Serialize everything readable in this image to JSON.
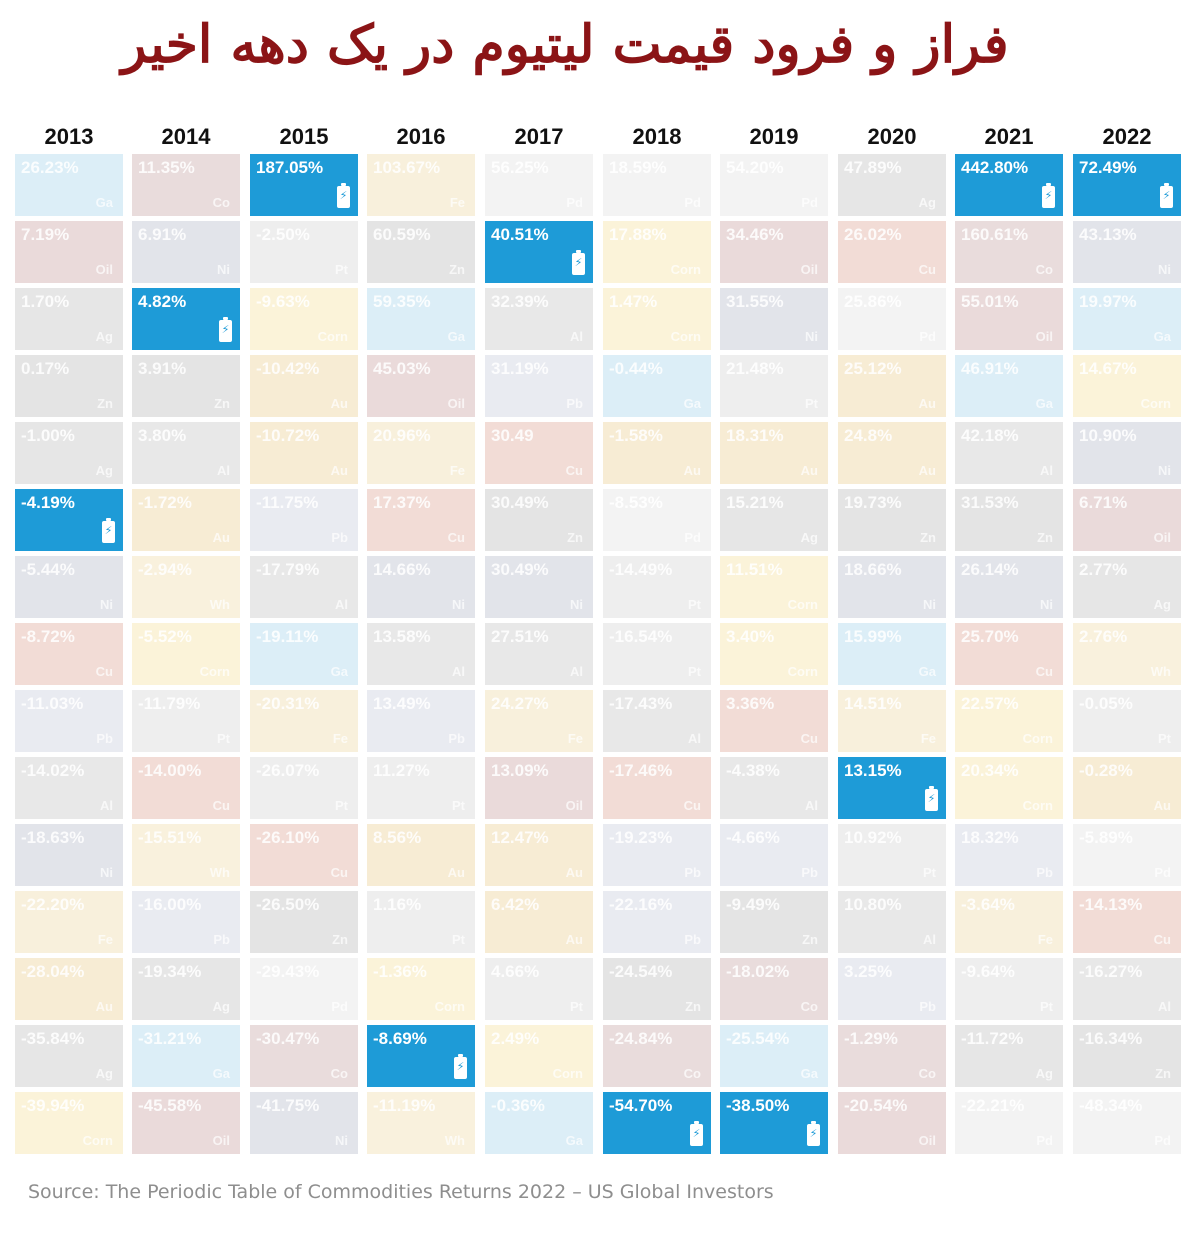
{
  "title": "فراز و فرود قیمت لیتیوم در یک دهه اخیر",
  "source": "Source: The Periodic Table of Commodities Returns 2022 – US Global Investors",
  "colors": {
    "highlight": "#1e9bd7",
    "title": "#8b1416",
    "commodity": {
      "Li": "#1e9bd7",
      "Ni": "#e2e4ea",
      "Ag": "#e6e6e6",
      "Au": "#f7ecd4",
      "Zn": "#e4e4e4",
      "Al": "#e8e8e8",
      "Pb": "#e9ebf1",
      "Cu": "#f2dcd6",
      "Pt": "#eeeeee",
      "Pd": "#f3f3f3",
      "Ga": "#dceef7",
      "Fe": "#f8f0dc",
      "Co": "#e9dcdc",
      "Oil": "#eadada",
      "Corn": "#fbf3d9",
      "Wh": "#f9f1dd"
    }
  },
  "chart_data": {
    "type": "table",
    "title": "فراز و فرود قیمت لیتیوم در یک دهه اخیر",
    "highlight_series": "Li",
    "columns": [
      {
        "year": "2013",
        "cells": [
          {
            "value": "26.23%",
            "sym": "Ga"
          },
          {
            "value": "7.19%",
            "sym": "Oil"
          },
          {
            "value": "1.70%",
            "sym": "Ag"
          },
          {
            "value": "0.17%",
            "sym": "Zn"
          },
          {
            "value": "-1.00%",
            "sym": "Ag"
          },
          {
            "value": "-4.19%",
            "sym": "Li"
          },
          {
            "value": "-5.44%",
            "sym": "Ni"
          },
          {
            "value": "-8.72%",
            "sym": "Cu"
          },
          {
            "value": "-11.03%",
            "sym": "Pb"
          },
          {
            "value": "-14.02%",
            "sym": "Al"
          },
          {
            "value": "-18.63%",
            "sym": "Ni"
          },
          {
            "value": "-22.20%",
            "sym": "Fe"
          },
          {
            "value": "-28.04%",
            "sym": "Au"
          },
          {
            "value": "-35.84%",
            "sym": "Ag"
          },
          {
            "value": "-39.94%",
            "sym": "Corn"
          }
        ]
      },
      {
        "year": "2014",
        "cells": [
          {
            "value": "11.35%",
            "sym": "Co"
          },
          {
            "value": "6.91%",
            "sym": "Ni"
          },
          {
            "value": "4.82%",
            "sym": "Li"
          },
          {
            "value": "3.91%",
            "sym": "Zn"
          },
          {
            "value": "3.80%",
            "sym": "Al"
          },
          {
            "value": "-1.72%",
            "sym": "Au"
          },
          {
            "value": "-2.94%",
            "sym": "Wh"
          },
          {
            "value": "-5.52%",
            "sym": "Corn"
          },
          {
            "value": "-11.79%",
            "sym": "Pt"
          },
          {
            "value": "-14.00%",
            "sym": "Cu"
          },
          {
            "value": "-15.51%",
            "sym": "Wh"
          },
          {
            "value": "-16.00%",
            "sym": "Pb"
          },
          {
            "value": "-19.34%",
            "sym": "Ag"
          },
          {
            "value": "-31.21%",
            "sym": "Ga"
          },
          {
            "value": "-45.58%",
            "sym": "Oil"
          }
        ]
      },
      {
        "year": "2015",
        "cells": [
          {
            "value": "187.05%",
            "sym": "Li"
          },
          {
            "value": "-2.50%",
            "sym": "Pt"
          },
          {
            "value": "-9.63%",
            "sym": "Corn"
          },
          {
            "value": "-10.42%",
            "sym": "Au"
          },
          {
            "value": "-10.72%",
            "sym": "Au"
          },
          {
            "value": "-11.75%",
            "sym": "Pb"
          },
          {
            "value": "-17.79%",
            "sym": "Al"
          },
          {
            "value": "-19.11%",
            "sym": "Ga"
          },
          {
            "value": "-20.31%",
            "sym": "Fe"
          },
          {
            "value": "-26.07%",
            "sym": "Pt"
          },
          {
            "value": "-26.10%",
            "sym": "Cu"
          },
          {
            "value": "-26.50%",
            "sym": "Zn"
          },
          {
            "value": "-29.43%",
            "sym": "Pd"
          },
          {
            "value": "-30.47%",
            "sym": "Co"
          },
          {
            "value": "-41.75%",
            "sym": "Ni"
          }
        ]
      },
      {
        "year": "2016",
        "cells": [
          {
            "value": "103.67%",
            "sym": "Fe"
          },
          {
            "value": "60.59%",
            "sym": "Zn"
          },
          {
            "value": "59.35%",
            "sym": "Ga"
          },
          {
            "value": "45.03%",
            "sym": "Oil"
          },
          {
            "value": "20.96%",
            "sym": "Fe"
          },
          {
            "value": "17.37%",
            "sym": "Cu"
          },
          {
            "value": "14.66%",
            "sym": "Ni"
          },
          {
            "value": "13.58%",
            "sym": "Al"
          },
          {
            "value": "13.49%",
            "sym": "Pb"
          },
          {
            "value": "11.27%",
            "sym": "Pt"
          },
          {
            "value": "8.56%",
            "sym": "Au"
          },
          {
            "value": "1.16%",
            "sym": "Pt"
          },
          {
            "value": "-1.36%",
            "sym": "Corn"
          },
          {
            "value": "-8.69%",
            "sym": "Li"
          },
          {
            "value": "-11.19%",
            "sym": "Wh"
          }
        ]
      },
      {
        "year": "2017",
        "cells": [
          {
            "value": "56.25%",
            "sym": "Pd"
          },
          {
            "value": "40.51%",
            "sym": "Li"
          },
          {
            "value": "32.39%",
            "sym": "Al"
          },
          {
            "value": "31.19%",
            "sym": "Pb"
          },
          {
            "value": "30.49",
            "sym": "Cu"
          },
          {
            "value": "30.49%",
            "sym": "Zn"
          },
          {
            "value": "30.49%",
            "sym": "Ni"
          },
          {
            "value": "27.51%",
            "sym": "Al"
          },
          {
            "value": "24.27%",
            "sym": "Fe"
          },
          {
            "value": "13.09%",
            "sym": "Oil"
          },
          {
            "value": "12.47%",
            "sym": "Au"
          },
          {
            "value": "6.42%",
            "sym": "Au"
          },
          {
            "value": "4.66%",
            "sym": "Pt"
          },
          {
            "value": "2.49%",
            "sym": "Corn"
          },
          {
            "value": "-0.36%",
            "sym": "Ga"
          }
        ]
      },
      {
        "year": "2018",
        "cells": [
          {
            "value": "18.59%",
            "sym": "Pd"
          },
          {
            "value": "17.88%",
            "sym": "Corn"
          },
          {
            "value": "1.47%",
            "sym": "Corn"
          },
          {
            "value": "-0.44%",
            "sym": "Ga"
          },
          {
            "value": "-1.58%",
            "sym": "Au"
          },
          {
            "value": "-8.53%",
            "sym": "Pd"
          },
          {
            "value": "-14.49%",
            "sym": "Pt"
          },
          {
            "value": "-16.54%",
            "sym": "Pt"
          },
          {
            "value": "-17.43%",
            "sym": "Al"
          },
          {
            "value": "-17.46%",
            "sym": "Cu"
          },
          {
            "value": "-19.23%",
            "sym": "Pb"
          },
          {
            "value": "-22.16%",
            "sym": "Pb"
          },
          {
            "value": "-24.54%",
            "sym": "Zn"
          },
          {
            "value": "-24.84%",
            "sym": "Co"
          },
          {
            "value": "-54.70%",
            "sym": "Li"
          }
        ]
      },
      {
        "year": "2019",
        "cells": [
          {
            "value": "54.20%",
            "sym": "Pd"
          },
          {
            "value": "34.46%",
            "sym": "Oil"
          },
          {
            "value": "31.55%",
            "sym": "Ni"
          },
          {
            "value": "21.48%",
            "sym": "Pt"
          },
          {
            "value": "18.31%",
            "sym": "Au"
          },
          {
            "value": "15.21%",
            "sym": "Ag"
          },
          {
            "value": "11.51%",
            "sym": "Corn"
          },
          {
            "value": "3.40%",
            "sym": "Corn"
          },
          {
            "value": "3.36%",
            "sym": "Cu"
          },
          {
            "value": "-4.38%",
            "sym": "Al"
          },
          {
            "value": "-4.66%",
            "sym": "Pb"
          },
          {
            "value": "-9.49%",
            "sym": "Zn"
          },
          {
            "value": "-18.02%",
            "sym": "Co"
          },
          {
            "value": "-25.54%",
            "sym": "Ga"
          },
          {
            "value": "-38.50%",
            "sym": "Li"
          }
        ]
      },
      {
        "year": "2020",
        "cells": [
          {
            "value": "47.89%",
            "sym": "Ag"
          },
          {
            "value": "26.02%",
            "sym": "Cu"
          },
          {
            "value": "25.86%",
            "sym": "Pd"
          },
          {
            "value": "25.12%",
            "sym": "Au"
          },
          {
            "value": "24.8%",
            "sym": "Au"
          },
          {
            "value": "19.73%",
            "sym": "Zn"
          },
          {
            "value": "18.66%",
            "sym": "Ni"
          },
          {
            "value": "15.99%",
            "sym": "Ga"
          },
          {
            "value": "14.51%",
            "sym": "Fe"
          },
          {
            "value": "13.15%",
            "sym": "Li"
          },
          {
            "value": "10.92%",
            "sym": "Pt"
          },
          {
            "value": "10.80%",
            "sym": "Al"
          },
          {
            "value": "3.25%",
            "sym": "Pb"
          },
          {
            "value": "-1.29%",
            "sym": "Co"
          },
          {
            "value": "-20.54%",
            "sym": "Oil"
          }
        ]
      },
      {
        "year": "2021",
        "cells": [
          {
            "value": "442.80%",
            "sym": "Li"
          },
          {
            "value": "160.61%",
            "sym": "Co"
          },
          {
            "value": "55.01%",
            "sym": "Oil"
          },
          {
            "value": "46.91%",
            "sym": "Ga"
          },
          {
            "value": "42.18%",
            "sym": "Al"
          },
          {
            "value": "31.53%",
            "sym": "Zn"
          },
          {
            "value": "26.14%",
            "sym": "Ni"
          },
          {
            "value": "25.70%",
            "sym": "Cu"
          },
          {
            "value": "22.57%",
            "sym": "Corn"
          },
          {
            "value": "20.34%",
            "sym": "Corn"
          },
          {
            "value": "18.32%",
            "sym": "Pb"
          },
          {
            "value": "-3.64%",
            "sym": "Fe"
          },
          {
            "value": "-9.64%",
            "sym": "Pt"
          },
          {
            "value": "-11.72%",
            "sym": "Ag"
          },
          {
            "value": "-22.21%",
            "sym": "Pd"
          }
        ]
      },
      {
        "year": "2022",
        "cells": [
          {
            "value": "72.49%",
            "sym": "Li"
          },
          {
            "value": "43.13%",
            "sym": "Ni"
          },
          {
            "value": "19.97%",
            "sym": "Ga"
          },
          {
            "value": "14.67%",
            "sym": "Corn"
          },
          {
            "value": "10.90%",
            "sym": "Ni"
          },
          {
            "value": "6.71%",
            "sym": "Oil"
          },
          {
            "value": "2.77%",
            "sym": "Ag"
          },
          {
            "value": "2.76%",
            "sym": "Wh"
          },
          {
            "value": "-0.05%",
            "sym": "Pt"
          },
          {
            "value": "-0.28%",
            "sym": "Au"
          },
          {
            "value": "-5.89%",
            "sym": "Pd"
          },
          {
            "value": "-14.13%",
            "sym": "Cu"
          },
          {
            "value": "-16.27%",
            "sym": "Al"
          },
          {
            "value": "-16.34%",
            "sym": "Zn"
          },
          {
            "value": "-48.34%",
            "sym": "Pd"
          }
        ]
      }
    ]
  }
}
